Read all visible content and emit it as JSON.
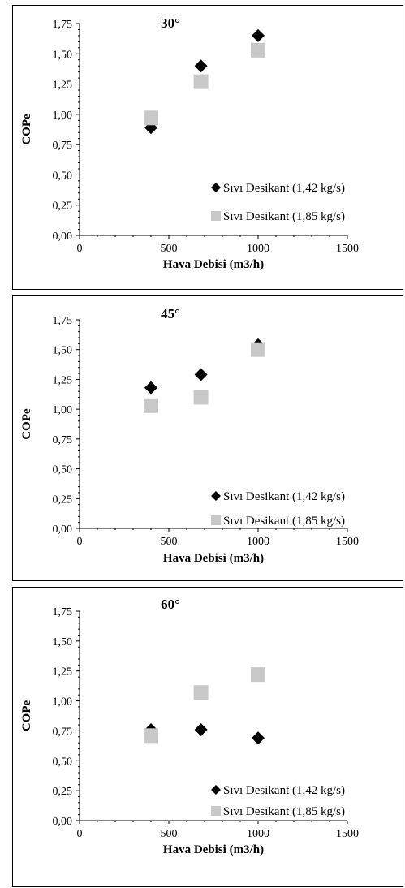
{
  "chart_data": [
    {
      "type": "scatter",
      "title": "30°",
      "xlabel": "Hava Debisi (m3/h)",
      "ylabel": "COPe",
      "xlim": [
        0,
        1500
      ],
      "ylim": [
        0,
        1.75
      ],
      "x_ticks": [
        "0",
        "500",
        "1000",
        "1500"
      ],
      "y_ticks": [
        "0,00",
        "0,25",
        "0,50",
        "0,75",
        "1,00",
        "1,25",
        "1,50",
        "1,75"
      ],
      "legend_position": "bottom-right",
      "series": [
        {
          "name": "Sıvı Desikant (1,42 kg/s)",
          "marker": "diamond",
          "color": "#000000",
          "points": [
            {
              "x": 400,
              "y": 0.89
            },
            {
              "x": 680,
              "y": 1.4
            },
            {
              "x": 1000,
              "y": 1.65
            }
          ]
        },
        {
          "name": "Sıvı Desikant (1,85 kg/s)",
          "marker": "square",
          "color": "#c8c8c8",
          "points": [
            {
              "x": 400,
              "y": 0.97
            },
            {
              "x": 680,
              "y": 1.27
            },
            {
              "x": 1000,
              "y": 1.53
            }
          ]
        }
      ]
    },
    {
      "type": "scatter",
      "title": "45°",
      "xlabel": "Hava Debisi (m3/h)",
      "ylabel": "COPe",
      "xlim": [
        0,
        1500
      ],
      "ylim": [
        0,
        1.75
      ],
      "x_ticks": [
        "0",
        "500",
        "1000",
        "1500"
      ],
      "y_ticks": [
        "0,00",
        "0,25",
        "0,50",
        "0,75",
        "1,00",
        "1,25",
        "1,50",
        "1,75"
      ],
      "legend_position": "bottom-right",
      "series": [
        {
          "name": "Sıvı Desikant (1,42 kg/s)",
          "marker": "diamond",
          "color": "#000000",
          "points": [
            {
              "x": 400,
              "y": 1.18
            },
            {
              "x": 680,
              "y": 1.29
            },
            {
              "x": 1000,
              "y": 1.54
            }
          ]
        },
        {
          "name": "Sıvı Desikant (1,85 kg/s)",
          "marker": "square",
          "color": "#c8c8c8",
          "points": [
            {
              "x": 400,
              "y": 1.03
            },
            {
              "x": 680,
              "y": 1.1
            },
            {
              "x": 1000,
              "y": 1.5
            }
          ]
        }
      ]
    },
    {
      "type": "scatter",
      "title": "60°",
      "xlabel": "Hava Debisi (m3/h)",
      "ylabel": "COPe",
      "xlim": [
        0,
        1500
      ],
      "ylim": [
        0,
        1.75
      ],
      "x_ticks": [
        "0",
        "500",
        "1000",
        "1500"
      ],
      "y_ticks": [
        "0,00",
        "0,25",
        "0,50",
        "0,75",
        "1,00",
        "1,25",
        "1,50",
        "1,75"
      ],
      "legend_position": "bottom-right",
      "series": [
        {
          "name": "Sıvı Desikant (1,42 kg/s)",
          "marker": "diamond",
          "color": "#000000",
          "points": [
            {
              "x": 400,
              "y": 0.76
            },
            {
              "x": 680,
              "y": 0.76
            },
            {
              "x": 1000,
              "y": 0.69
            }
          ]
        },
        {
          "name": "Sıvı Desikant (1,85 kg/s)",
          "marker": "square",
          "color": "#c8c8c8",
          "points": [
            {
              "x": 400,
              "y": 0.71
            },
            {
              "x": 680,
              "y": 1.07
            },
            {
              "x": 1000,
              "y": 1.22
            }
          ]
        }
      ]
    }
  ]
}
